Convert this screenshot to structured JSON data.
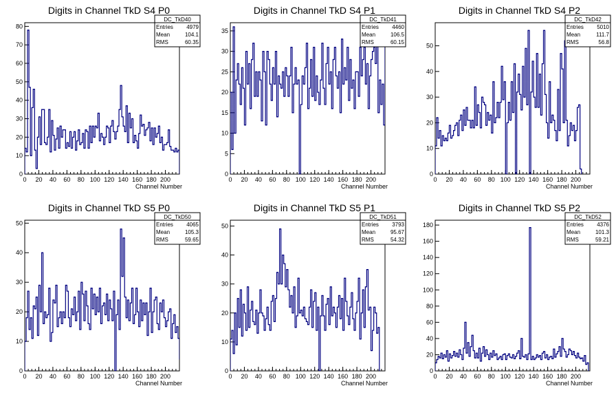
{
  "chart_data": [
    {
      "type": "histogram",
      "title": "Digits in Channel TkD S4 P0",
      "xlabel": "Channel Number",
      "ylabel": "",
      "xlim": [
        0,
        220
      ],
      "ylim": [
        0,
        82
      ],
      "xticks": [
        0,
        20,
        40,
        60,
        80,
        100,
        120,
        140,
        160,
        180,
        200
      ],
      "yticks": [
        0,
        10,
        20,
        30,
        40,
        50,
        60,
        70,
        80
      ],
      "color": "#000080",
      "stats": {
        "name": "DC_TkD40",
        "rows": [
          {
            "label": "Entries",
            "value": "4979"
          },
          {
            "label": "Mean",
            "value": "104.1"
          },
          {
            "label": "RMS",
            "value": "60.35"
          }
        ]
      },
      "bin_width": 2,
      "values": [
        14,
        12,
        78,
        47,
        10,
        36,
        46,
        13,
        3,
        20,
        31,
        16,
        35,
        35,
        17,
        16,
        20,
        35,
        12,
        29,
        21,
        13,
        19,
        25,
        14,
        26,
        20,
        24,
        24,
        14,
        17,
        15,
        23,
        14,
        20,
        23,
        13,
        18,
        24,
        16,
        17,
        22,
        14,
        24,
        23,
        14,
        26,
        17,
        26,
        20,
        26,
        25,
        33,
        18,
        22,
        20,
        16,
        20,
        26,
        25,
        17,
        26,
        29,
        23,
        19,
        23,
        26,
        35,
        48,
        31,
        26,
        23,
        37,
        17,
        33,
        25,
        30,
        17,
        21,
        18,
        14,
        22,
        32,
        26,
        27,
        21,
        24,
        25,
        28,
        18,
        25,
        16,
        25,
        20,
        22,
        26,
        17,
        20,
        13,
        16,
        16,
        17,
        24,
        15,
        13,
        13,
        12,
        14,
        12,
        13
      ]
    },
    {
      "type": "histogram",
      "title": "Digits in Channel TkD S4 P1",
      "xlabel": "Channel Number",
      "ylabel": "",
      "xlim": [
        0,
        220
      ],
      "ylim": [
        0,
        37
      ],
      "xticks": [
        0,
        20,
        40,
        60,
        80,
        100,
        120,
        140,
        160,
        180,
        200
      ],
      "yticks": [
        0,
        5,
        10,
        15,
        20,
        25,
        30,
        35
      ],
      "color": "#000080",
      "stats": {
        "name": "DC_TkD41",
        "rows": [
          {
            "label": "Entries",
            "value": "4460"
          },
          {
            "label": "Mean",
            "value": "106.5"
          },
          {
            "label": "RMS",
            "value": "60.15"
          }
        ]
      },
      "bin_width": 2,
      "values": [
        20,
        6,
        36,
        10,
        23,
        27,
        22,
        17,
        26,
        21,
        12,
        30,
        22,
        27,
        16,
        28,
        32,
        19,
        25,
        19,
        25,
        23,
        13,
        30,
        25,
        12,
        30,
        28,
        22,
        18,
        26,
        22,
        30,
        14,
        24,
        22,
        21,
        25,
        19,
        26,
        24,
        19,
        24,
        31,
        15,
        22,
        26,
        22,
        23,
        0,
        17,
        24,
        22,
        26,
        32,
        16,
        21,
        28,
        19,
        31,
        18,
        24,
        20,
        17,
        23,
        32,
        21,
        17,
        27,
        31,
        22,
        25,
        16,
        28,
        31,
        24,
        21,
        25,
        15,
        33,
        22,
        26,
        23,
        31,
        18,
        28,
        21,
        23,
        16,
        25,
        25,
        19,
        31,
        24,
        28,
        31,
        22,
        27,
        16,
        24,
        28,
        30,
        31,
        27,
        34,
        15,
        23,
        17,
        22,
        12,
        31,
        16
      ]
    },
    {
      "type": "histogram",
      "title": "Digits in Channel TkD S4 P2",
      "xlabel": "Channel Number",
      "ylabel": "",
      "xlim": [
        0,
        220
      ],
      "ylim": [
        0,
        59
      ],
      "xticks": [
        0,
        20,
        40,
        60,
        80,
        100,
        120,
        140,
        160,
        180,
        200
      ],
      "yticks": [
        0,
        10,
        20,
        30,
        40,
        50
      ],
      "color": "#000080",
      "stats": {
        "name": "DC_TkD42",
        "rows": [
          {
            "label": "Entries",
            "value": "5010"
          },
          {
            "label": "Mean",
            "value": "111.7"
          },
          {
            "label": "RMS",
            "value": "56.8"
          }
        ]
      },
      "bin_width": 2,
      "values": [
        11,
        22,
        14,
        17,
        11,
        15,
        13,
        14,
        13,
        16,
        19,
        14,
        15,
        17,
        19,
        20,
        15,
        21,
        23,
        17,
        25,
        19,
        26,
        21,
        21,
        18,
        21,
        18,
        34,
        19,
        27,
        24,
        18,
        30,
        28,
        27,
        19,
        24,
        21,
        23,
        16,
        36,
        20,
        22,
        28,
        22,
        28,
        42,
        29,
        36,
        0,
        20,
        28,
        21,
        36,
        24,
        43,
        0,
        32,
        39,
        31,
        25,
        42,
        30,
        49,
        27,
        56,
        0,
        32,
        44,
        30,
        26,
        47,
        26,
        39,
        23,
        43,
        56,
        31,
        20,
        14,
        36,
        20,
        23,
        21,
        17,
        13,
        33,
        17,
        47,
        41,
        20,
        52,
        21,
        11,
        15,
        20,
        17,
        19,
        13,
        17,
        26,
        27,
        2
      ]
    },
    {
      "type": "histogram",
      "title": "Digits in Channel TkD S5 P0",
      "xlabel": "Channel Number",
      "ylabel": "",
      "xlim": [
        0,
        220
      ],
      "ylim": [
        0,
        51
      ],
      "xticks": [
        0,
        20,
        40,
        60,
        80,
        100,
        120,
        140,
        160,
        180,
        200
      ],
      "yticks": [
        0,
        10,
        20,
        30,
        40,
        50
      ],
      "color": "#000080",
      "stats": {
        "name": "DC_TkD50",
        "rows": [
          {
            "label": "Entries",
            "value": "4065"
          },
          {
            "label": "Mean",
            "value": "105.3"
          },
          {
            "label": "RMS",
            "value": "59.65"
          }
        ]
      },
      "bin_width": 2,
      "values": [
        10,
        18,
        27,
        14,
        18,
        11,
        22,
        21,
        25,
        12,
        29,
        20,
        40,
        16,
        20,
        18,
        19,
        28,
        10,
        13,
        24,
        23,
        29,
        15,
        18,
        20,
        16,
        20,
        18,
        29,
        27,
        18,
        15,
        21,
        19,
        25,
        17,
        20,
        27,
        14,
        30,
        26,
        17,
        27,
        22,
        16,
        14,
        28,
        21,
        26,
        19,
        25,
        20,
        28,
        16,
        22,
        23,
        19,
        26,
        17,
        24,
        21,
        17,
        27,
        0,
        19,
        24,
        14,
        48,
        32,
        45,
        25,
        18,
        24,
        17,
        23,
        28,
        16,
        19,
        28,
        20,
        15,
        24,
        17,
        23,
        19,
        23,
        12,
        20,
        28,
        13,
        20,
        24,
        25,
        16,
        14,
        23,
        20,
        24,
        18,
        15,
        17,
        20,
        21,
        11,
        16,
        19,
        13,
        15,
        11,
        4,
        8,
        14
      ]
    },
    {
      "type": "histogram",
      "title": "Digits in Channel TkD S5 P1",
      "xlabel": "Channel Number",
      "ylabel": "",
      "xlim": [
        0,
        220
      ],
      "ylim": [
        0,
        52
      ],
      "xticks": [
        0,
        20,
        40,
        60,
        80,
        100,
        120,
        140,
        160,
        180,
        200
      ],
      "yticks": [
        0,
        10,
        20,
        30,
        40,
        50
      ],
      "color": "#000080",
      "stats": {
        "name": "DC_TkD51",
        "rows": [
          {
            "label": "Entries",
            "value": "3793"
          },
          {
            "label": "Mean",
            "value": "95.67"
          },
          {
            "label": "RMS",
            "value": "54.32"
          }
        ]
      },
      "bin_width": 2,
      "values": [
        11,
        14,
        6,
        20,
        9,
        25,
        15,
        28,
        12,
        23,
        20,
        14,
        29,
        15,
        21,
        24,
        17,
        16,
        21,
        13,
        20,
        28,
        20,
        19,
        14,
        18,
        22,
        16,
        14,
        24,
        26,
        17,
        25,
        34,
        30,
        49,
        30,
        40,
        37,
        29,
        35,
        28,
        22,
        26,
        20,
        29,
        15,
        19,
        32,
        20,
        21,
        19,
        22,
        18,
        17,
        16,
        22,
        28,
        15,
        24,
        27,
        14,
        22,
        0,
        19,
        26,
        19,
        14,
        23,
        25,
        16,
        29,
        19,
        22,
        20,
        15,
        22,
        26,
        18,
        25,
        14,
        32,
        24,
        19,
        16,
        22,
        27,
        18,
        14,
        20,
        24,
        32,
        11,
        20,
        28,
        15,
        29,
        35,
        21,
        22,
        7,
        14,
        22,
        20,
        13,
        15
      ]
    },
    {
      "type": "histogram",
      "title": "Digits in Channel TkD S5 P2",
      "xlabel": "Channel Number",
      "ylabel": "",
      "xlim": [
        0,
        220
      ],
      "ylim": [
        0,
        186
      ],
      "xticks": [
        0,
        20,
        40,
        60,
        80,
        100,
        120,
        140,
        160,
        180,
        200
      ],
      "yticks": [
        0,
        20,
        40,
        60,
        80,
        100,
        120,
        140,
        160,
        180
      ],
      "color": "#000080",
      "stats": {
        "name": "DC_TkD52",
        "rows": [
          {
            "label": "Entries",
            "value": "4376"
          },
          {
            "label": "Mean",
            "value": "101.3"
          },
          {
            "label": "RMS",
            "value": "59.21"
          }
        ]
      },
      "bin_width": 2,
      "values": [
        10,
        14,
        18,
        16,
        22,
        15,
        20,
        17,
        25,
        12,
        21,
        16,
        19,
        24,
        18,
        22,
        17,
        26,
        20,
        14,
        28,
        60,
        22,
        35,
        18,
        30,
        44,
        25,
        16,
        22,
        16,
        28,
        12,
        22,
        30,
        18,
        26,
        20,
        14,
        22,
        17,
        25,
        19,
        21,
        14,
        16,
        18,
        14,
        20,
        21,
        14,
        19,
        21,
        17,
        16,
        20,
        15,
        18,
        22,
        25,
        15,
        40,
        18,
        17,
        20,
        14,
        21,
        177,
        14,
        18,
        14,
        16,
        20,
        17,
        19,
        14,
        22,
        24,
        16,
        20,
        14,
        17,
        18,
        15,
        27,
        17,
        21,
        24,
        30,
        18,
        40,
        27,
        24,
        17,
        20,
        27,
        25,
        20,
        24,
        19,
        16,
        22,
        17,
        15,
        16,
        12,
        19,
        8,
        10
      ]
    }
  ]
}
